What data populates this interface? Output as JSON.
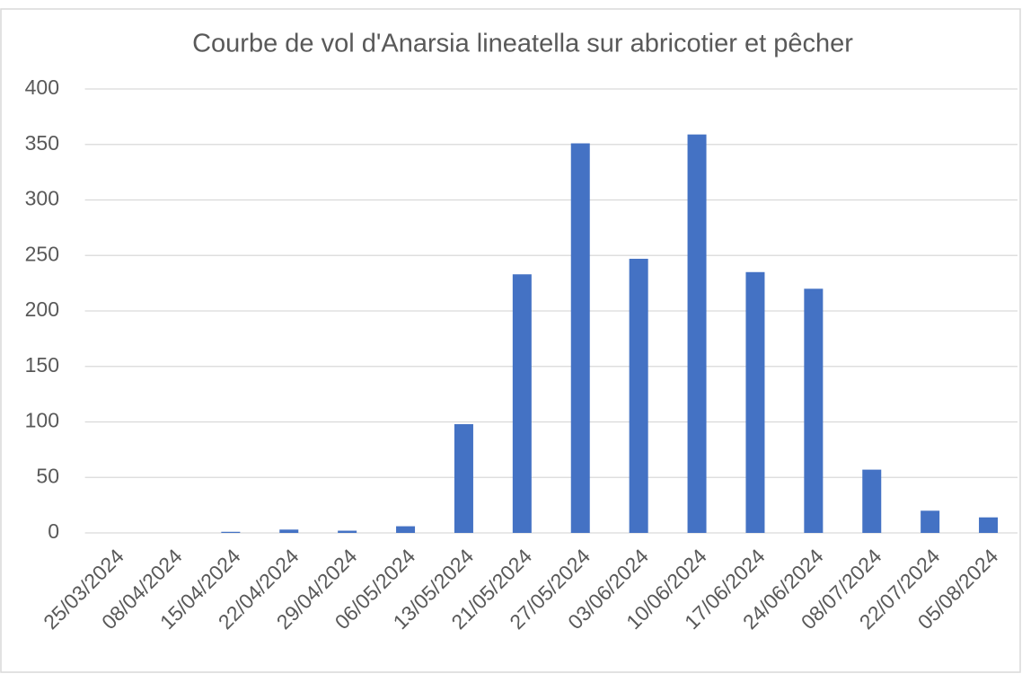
{
  "chart_data": {
    "type": "bar",
    "title": "Courbe de vol d'Anarsia lineatella sur abricotier et pêcher",
    "categories": [
      "25/03/2024",
      "08/04/2024",
      "15/04/2024",
      "22/04/2024",
      "29/04/2024",
      "06/05/2024",
      "13/05/2024",
      "21/05/2024",
      "27/05/2024",
      "03/06/2024",
      "10/06/2024",
      "17/06/2024",
      "24/06/2024",
      "08/07/2024",
      "22/07/2024",
      "05/08/2024"
    ],
    "values": [
      0,
      0,
      1,
      3,
      2,
      6,
      98,
      233,
      351,
      247,
      359,
      235,
      220,
      57,
      20,
      14
    ],
    "color": "#4472c4",
    "ylim": [
      0,
      400
    ],
    "yticks": [
      0,
      50,
      100,
      150,
      200,
      250,
      300,
      350,
      400
    ],
    "grid": true
  }
}
